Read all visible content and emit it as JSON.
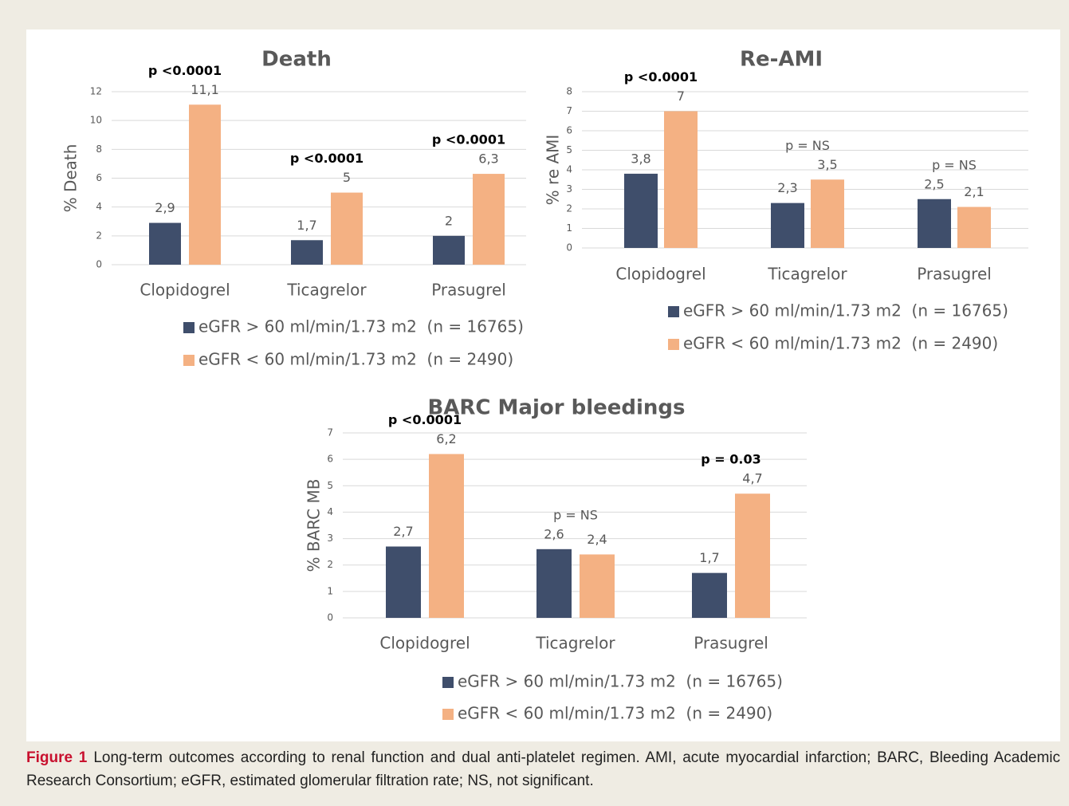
{
  "chart_data": [
    {
      "type": "bar",
      "title": "Death",
      "y_label": "% Death",
      "categories": [
        "Clopidogrel",
        "Ticagrelor",
        "Prasugrel"
      ],
      "series": [
        {
          "name": "eGFR > 60 ml/min/1.73 m2  (n = 16765)",
          "color": "#3f4e6b",
          "values": [
            2.9,
            1.7,
            2
          ],
          "value_labels": [
            "2,9",
            "1,7",
            "2"
          ]
        },
        {
          "name": "eGFR < 60 ml/min/1.73 m2  (n = 2490)",
          "color": "#f4b183",
          "values": [
            11.1,
            5,
            6.3
          ],
          "value_labels": [
            "11,1",
            "5",
            "6,3"
          ]
        }
      ],
      "annotations": [
        "p <0.0001",
        "p <0.0001",
        "p <0.0001"
      ],
      "annotations_bold": [
        true,
        true,
        true
      ],
      "ylim": [
        0,
        12
      ],
      "yticks": [
        0,
        2,
        4,
        6,
        8,
        10,
        12
      ],
      "grid": true
    },
    {
      "type": "bar",
      "title": "Re-AMI",
      "y_label": "% re AMI",
      "categories": [
        "Clopidogrel",
        "Ticagrelor",
        "Prasugrel"
      ],
      "series": [
        {
          "name": "eGFR > 60 ml/min/1.73 m2  (n = 16765)",
          "color": "#3f4e6b",
          "values": [
            3.8,
            2.3,
            2.5
          ],
          "value_labels": [
            "3,8",
            "2,3",
            "2,5"
          ]
        },
        {
          "name": "eGFR < 60 ml/min/1.73 m2  (n = 2490)",
          "color": "#f4b183",
          "values": [
            7,
            3.5,
            2.1
          ],
          "value_labels": [
            "7",
            "3,5",
            "2,1"
          ]
        }
      ],
      "annotations": [
        "p <0.0001",
        "p = NS",
        "p = NS"
      ],
      "annotations_bold": [
        true,
        false,
        false
      ],
      "ylim": [
        0,
        8
      ],
      "yticks": [
        0,
        1,
        2,
        3,
        4,
        5,
        6,
        7,
        8
      ],
      "grid": true
    },
    {
      "type": "bar",
      "title": "BARC Major bleedings",
      "y_label": "% BARC MB",
      "categories": [
        "Clopidogrel",
        "Ticagrelor",
        "Prasugrel"
      ],
      "series": [
        {
          "name": "eGFR > 60 ml/min/1.73 m2  (n = 16765)",
          "color": "#3f4e6b",
          "values": [
            2.7,
            2.6,
            1.7
          ],
          "value_labels": [
            "2,7",
            "2,6",
            "1,7"
          ]
        },
        {
          "name": "eGFR < 60 ml/min/1.73 m2  (n = 2490)",
          "color": "#f4b183",
          "values": [
            6.2,
            2.4,
            4.7
          ],
          "value_labels": [
            "6,2",
            "2,4",
            "4,7"
          ]
        }
      ],
      "annotations": [
        "p <0.0001",
        "p = NS",
        "p = 0.03"
      ],
      "annotations_bold": [
        true,
        false,
        true
      ],
      "ylim": [
        0,
        7
      ],
      "yticks": [
        0,
        1,
        2,
        3,
        4,
        5,
        6,
        7
      ],
      "grid": true
    }
  ],
  "caption": {
    "label": "Figure 1",
    "text": "Long-term outcomes according to renal function and dual anti-platelet regimen. AMI, acute myocardial infarction; BARC, Bleeding Academic Research Consortium; eGFR, estimated glomerular filtration rate; NS, not significant."
  }
}
